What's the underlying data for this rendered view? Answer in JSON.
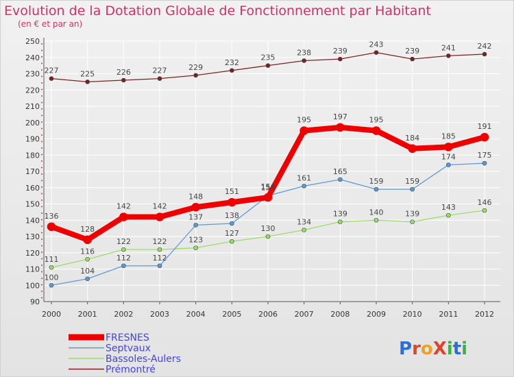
{
  "chart_data": {
    "type": "line",
    "title": "Evolution de la Dotation Globale de Fonctionnement par Habitant",
    "subtitle": "(en € et par an)",
    "xlabel": "",
    "ylabel": "",
    "x": [
      "2000",
      "2001",
      "2002",
      "2003",
      "2004",
      "2005",
      "2006",
      "2007",
      "2008",
      "2009",
      "2010",
      "2011",
      "2012"
    ],
    "ylim": [
      90,
      250
    ],
    "yticks": [
      90,
      100,
      110,
      120,
      130,
      140,
      150,
      160,
      170,
      180,
      190,
      200,
      210,
      220,
      230,
      240,
      250
    ],
    "grid": "horizontal",
    "legend_position": "bottom-left",
    "series": [
      {
        "name": "FRESNES",
        "color": "#ee0000",
        "values": [
          136,
          128,
          142,
          142,
          148,
          151,
          154,
          195,
          197,
          195,
          184,
          185,
          191
        ]
      },
      {
        "name": "Septvaux",
        "color": "#5a9bd5",
        "values": [
          100,
          104,
          112,
          112,
          137,
          138,
          155,
          161,
          165,
          159,
          159,
          174,
          175
        ]
      },
      {
        "name": "Bassoles-Aulers",
        "color": "#99dd66",
        "values": [
          111,
          116,
          122,
          122,
          123,
          127,
          130,
          134,
          139,
          140,
          139,
          143,
          146
        ]
      },
      {
        "name": "Prémontré",
        "color": "#7a2222",
        "values": [
          227,
          225,
          226,
          227,
          229,
          232,
          235,
          238,
          239,
          243,
          239,
          241,
          242
        ]
      }
    ],
    "data_labels": {
      "FRESNES": [
        "136",
        "128",
        "142",
        "142",
        "148",
        "151",
        "154",
        "195",
        "197",
        "195",
        "184",
        "185",
        "191"
      ],
      "Septvaux": [
        "100",
        "104",
        "112",
        "112",
        "137",
        "138",
        "155",
        "161",
        "165",
        "159",
        "159",
        "174",
        "175"
      ],
      "Bassoles-Aulers": [
        "111",
        "116",
        "122",
        "122",
        "123",
        "127",
        "130",
        "134",
        "139",
        "140",
        "139",
        "143",
        "146"
      ],
      "Prémontré": [
        "227",
        "225",
        "226",
        "227",
        "229",
        "232",
        "235",
        "238",
        "239",
        "243",
        "239",
        "241",
        "242"
      ]
    }
  },
  "logo": {
    "text": "ProXiti"
  }
}
